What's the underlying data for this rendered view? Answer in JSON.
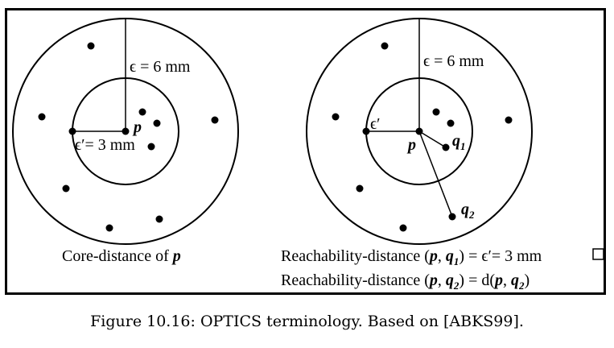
{
  "left_panel": {
    "eps_label": "ϵ = 6 mm",
    "eps_prime_label": "ϵ′= 3 mm",
    "p_label": "p",
    "caption": {
      "prefix": "Core-distance of ",
      "var": "p"
    }
  },
  "right_panel": {
    "eps_label": "ϵ = 6 mm",
    "eps_prime_label": "ϵ′",
    "p_label": "p",
    "q1_label": "q",
    "q1_sub": "1",
    "q2_label": "q",
    "q2_sub": "2",
    "line1": {
      "prefix": "Reachability-distance (",
      "p": "p",
      "comma": ", ",
      "q": "q",
      "sub": "1",
      "suffix": ") = ϵ′= 3 mm"
    },
    "line2": {
      "prefix": "Reachability-distance (",
      "p": "p",
      "comma": ", ",
      "q": "q",
      "sub": "2",
      "mid": ") = d(",
      "p2": "p",
      "comma2": ", ",
      "q2": "q",
      "sub2": "2",
      "suffix": ")"
    }
  },
  "figure_caption": "Figure 10.16: OPTICS terminology. Based on [ABKS99]."
}
